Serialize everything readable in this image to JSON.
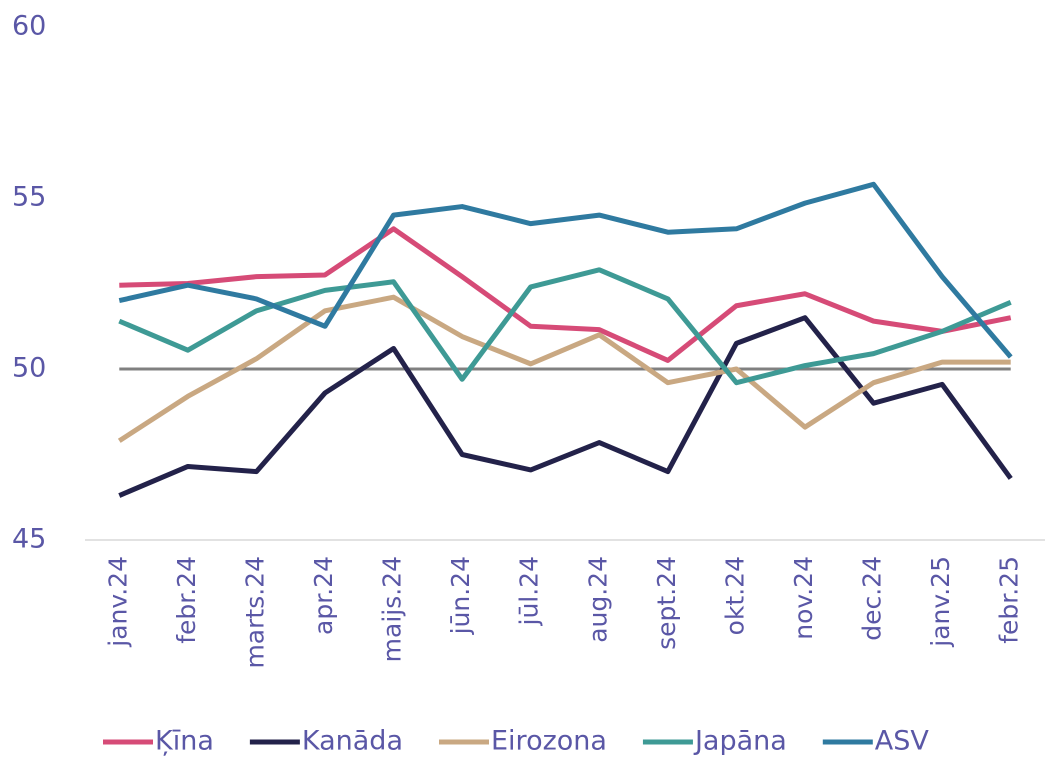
{
  "chart_data": {
    "type": "line",
    "categories": [
      "janv.24",
      "febr.24",
      "marts.24",
      "apr.24",
      "maijs.24",
      "jūn.24",
      "jūl.24",
      "aug.24",
      "sept.24",
      "okt.24",
      "nov.24",
      "dec.24",
      "janv.25",
      "febr.25"
    ],
    "series": [
      {
        "name": "Ķīna",
        "color": "#d64b77",
        "values": [
          52.45,
          52.5,
          52.7,
          52.75,
          54.1,
          52.7,
          51.25,
          51.15,
          50.25,
          51.85,
          52.2,
          51.4,
          51.1,
          51.5
        ]
      },
      {
        "name": "Kanāda",
        "color": "#23224a",
        "values": [
          46.3,
          47.15,
          47.0,
          49.3,
          50.6,
          47.5,
          47.05,
          47.85,
          47.0,
          50.75,
          51.5,
          49.0,
          49.55,
          46.8
        ]
      },
      {
        "name": "Eirozona",
        "color": "#c9a882",
        "values": [
          47.9,
          49.2,
          50.3,
          51.7,
          52.1,
          50.95,
          50.15,
          51.0,
          49.6,
          50.0,
          48.3,
          49.6,
          50.2,
          50.2
        ]
      },
      {
        "name": "Japāna",
        "color": "#3e9a95",
        "values": [
          51.4,
          50.55,
          51.7,
          52.3,
          52.55,
          49.7,
          52.4,
          52.9,
          52.05,
          49.6,
          50.1,
          50.45,
          51.1,
          51.95
        ]
      },
      {
        "name": "ASV",
        "color": "#2f7aa0",
        "values": [
          52.0,
          52.45,
          52.05,
          51.25,
          54.5,
          54.75,
          54.25,
          54.5,
          54.0,
          54.1,
          54.85,
          55.4,
          52.7,
          50.35
        ]
      }
    ],
    "reference_line": 50,
    "ylim": [
      45,
      60
    ],
    "yticks": [
      45,
      50,
      55,
      60
    ],
    "grid": false,
    "legend": "bottom"
  }
}
